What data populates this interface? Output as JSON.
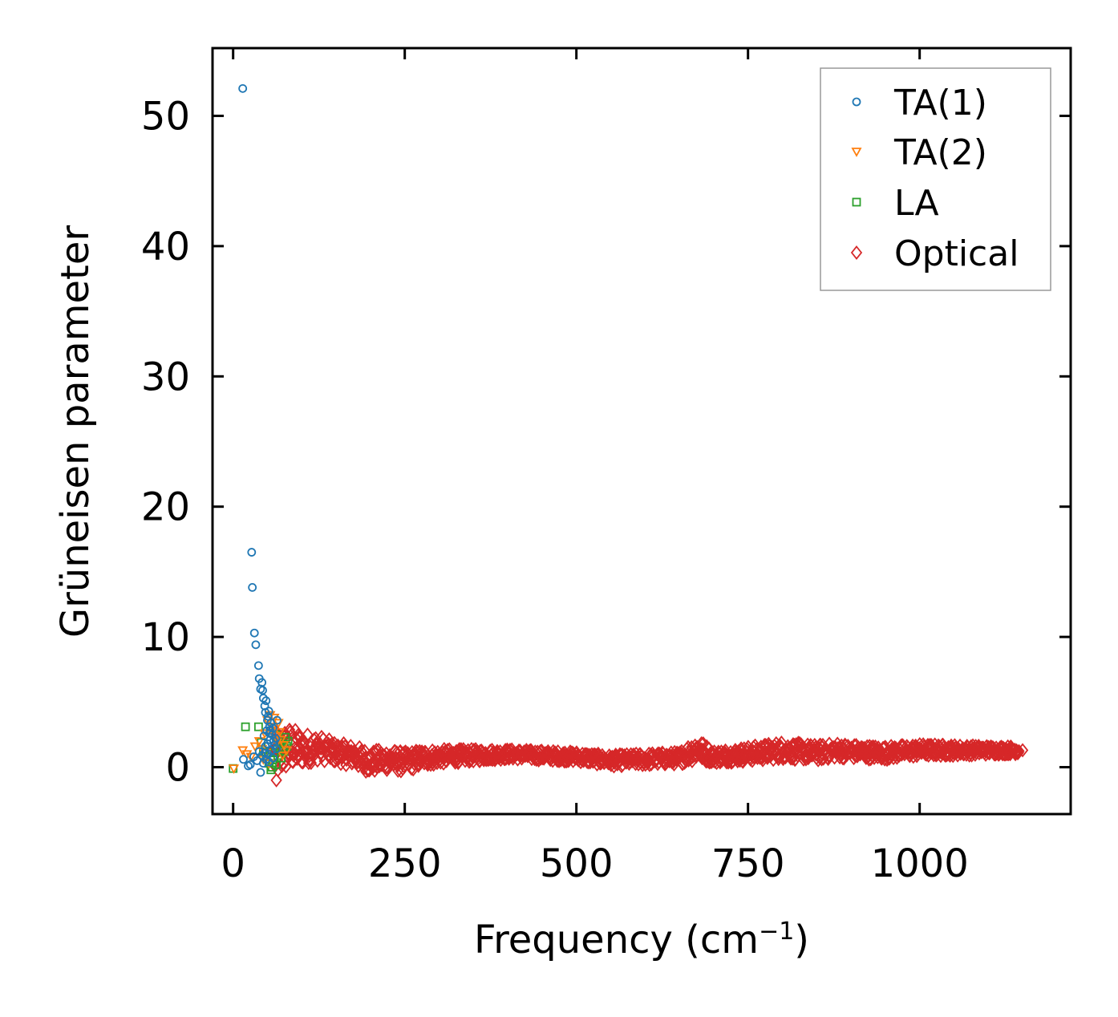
{
  "chart_data": {
    "type": "scatter",
    "xlabel": "Frequency (cm",
    "xlabel_superscript": "−1",
    "xlabel_suffix": ")",
    "ylabel": "Grüneisen parameter",
    "xlim": [
      -30,
      1220
    ],
    "ylim": [
      -3.6,
      55.2
    ],
    "xticks": [
      0,
      250,
      500,
      750,
      1000
    ],
    "yticks": [
      0,
      10,
      20,
      30,
      40,
      50
    ],
    "grid": false,
    "legend_position": "top-right",
    "series": [
      {
        "name": "TA(1)",
        "marker": "circle",
        "color": "#1f77b4",
        "points": [
          [
            14,
            52.1
          ],
          [
            27,
            16.5
          ],
          [
            28,
            13.8
          ],
          [
            31,
            10.3
          ],
          [
            33,
            9.4
          ],
          [
            37,
            7.8
          ],
          [
            38,
            6.8
          ],
          [
            40,
            6.0
          ],
          [
            42,
            6.5
          ],
          [
            43,
            5.9
          ],
          [
            44,
            5.3
          ],
          [
            46,
            4.7
          ],
          [
            47,
            4.2
          ],
          [
            48,
            5.1
          ],
          [
            50,
            3.6
          ],
          [
            51,
            3.9
          ],
          [
            52,
            4.3
          ],
          [
            53,
            3.1
          ],
          [
            54,
            2.8
          ],
          [
            55,
            3.4
          ],
          [
            57,
            2.5
          ],
          [
            58,
            3.0
          ],
          [
            59,
            2.0
          ],
          [
            60,
            1.7
          ],
          [
            62,
            2.2
          ],
          [
            63,
            1.4
          ],
          [
            64,
            3.6
          ],
          [
            15,
            0.6
          ],
          [
            22,
            0.1
          ],
          [
            25,
            0.2
          ],
          [
            30,
            0.8
          ],
          [
            35,
            0.5
          ],
          [
            38,
            1.2
          ],
          [
            40,
            -0.4
          ],
          [
            42,
            0.9
          ],
          [
            44,
            0.3
          ],
          [
            46,
            1.1
          ],
          [
            48,
            0.6
          ],
          [
            50,
            1.8
          ],
          [
            52,
            0.4
          ],
          [
            54,
            2.1
          ],
          [
            56,
            1.3
          ],
          [
            58,
            0.7
          ],
          [
            45,
            2.4
          ],
          [
            47,
            1.6
          ],
          [
            49,
            2.8
          ],
          [
            51,
            1.0
          ],
          [
            53,
            2.6
          ]
        ]
      },
      {
        "name": "TA(2)",
        "marker": "triangle-down",
        "color": "#ff7f0e",
        "points": [
          [
            1,
            -0.1
          ],
          [
            14,
            1.3
          ],
          [
            20,
            1.0
          ],
          [
            26,
            0.8
          ],
          [
            32,
            1.6
          ],
          [
            38,
            2.0
          ],
          [
            42,
            1.4
          ],
          [
            46,
            2.6
          ],
          [
            50,
            3.6
          ],
          [
            54,
            4.0
          ],
          [
            58,
            3.1
          ],
          [
            62,
            2.4
          ],
          [
            66,
            3.4
          ],
          [
            70,
            2.1
          ],
          [
            74,
            1.7
          ],
          [
            78,
            1.3
          ],
          [
            44,
            0.6
          ],
          [
            48,
            1.1
          ],
          [
            52,
            0.3
          ],
          [
            56,
            2.8
          ],
          [
            60,
            3.8
          ],
          [
            64,
            1.9
          ],
          [
            68,
            2.7
          ],
          [
            72,
            0.9
          ]
        ]
      },
      {
        "name": "LA",
        "marker": "square",
        "color": "#2ca02c",
        "points": [
          [
            0,
            -0.1
          ],
          [
            18,
            3.1
          ],
          [
            37,
            3.1
          ],
          [
            41,
            1.9
          ],
          [
            44,
            1.2
          ],
          [
            48,
            0.8
          ],
          [
            52,
            0.3
          ],
          [
            55,
            -0.2
          ],
          [
            58,
            0.6
          ],
          [
            60,
            1.1
          ],
          [
            63,
            0.2
          ],
          [
            65,
            0.9
          ],
          [
            68,
            1.5
          ],
          [
            70,
            0.7
          ],
          [
            72,
            1.8
          ],
          [
            74,
            1.2
          ],
          [
            76,
            2.3
          ],
          [
            78,
            1.6
          ],
          [
            80,
            2.0
          ],
          [
            62,
            2.5
          ],
          [
            66,
            1.9
          ],
          [
            57,
            0.0
          ]
        ]
      },
      {
        "name": "Optical",
        "marker": "diamond",
        "color": "#d62728",
        "points": [],
        "band": {
          "x_start": 60,
          "x_end": 1145,
          "centers": [
            [
              60,
              0.8
            ],
            [
              80,
              1.5
            ],
            [
              100,
              1.4
            ],
            [
              125,
              1.5
            ],
            [
              150,
              1.1
            ],
            [
              175,
              0.9
            ],
            [
              200,
              0.4
            ],
            [
              225,
              0.6
            ],
            [
              250,
              0.4
            ],
            [
              275,
              0.7
            ],
            [
              300,
              0.8
            ],
            [
              350,
              0.9
            ],
            [
              400,
              1.0
            ],
            [
              450,
              0.9
            ],
            [
              500,
              0.8
            ],
            [
              550,
              0.5
            ],
            [
              600,
              0.6
            ],
            [
              650,
              0.7
            ],
            [
              675,
              1.4
            ],
            [
              700,
              0.8
            ],
            [
              750,
              1.0
            ],
            [
              800,
              1.3
            ],
            [
              850,
              1.1
            ],
            [
              880,
              1.3
            ],
            [
              900,
              1.2
            ],
            [
              950,
              1.1
            ],
            [
              1000,
              1.3
            ],
            [
              1050,
              1.3
            ],
            [
              1100,
              1.3
            ],
            [
              1145,
              1.3
            ]
          ],
          "spread": [
            [
              60,
              1.9
            ],
            [
              80,
              1.7
            ],
            [
              100,
              1.3
            ],
            [
              125,
              1.0
            ],
            [
              150,
              0.8
            ],
            [
              200,
              0.9
            ],
            [
              250,
              0.8
            ],
            [
              300,
              0.6
            ],
            [
              400,
              0.4
            ],
            [
              500,
              0.4
            ],
            [
              600,
              0.5
            ],
            [
              650,
              0.5
            ],
            [
              675,
              0.9
            ],
            [
              700,
              0.5
            ],
            [
              800,
              0.7
            ],
            [
              880,
              0.6
            ],
            [
              1000,
              0.5
            ],
            [
              1145,
              0.3
            ]
          ]
        }
      }
    ]
  }
}
